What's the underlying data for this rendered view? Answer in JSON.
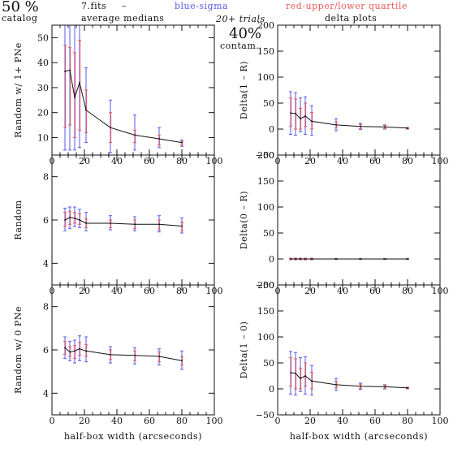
{
  "header": {
    "pct_left": "50 %",
    "catalog": "catalog",
    "fits": "7.fits",
    "dash": "–",
    "avg_medians": "average medians",
    "blue_sigma": "blue-sigma",
    "red_quartile": "red-upper/lower quartile",
    "trials": "20+ trials",
    "pct_right": "40%",
    "contam": "contam.",
    "delta_plots": "delta plots",
    "blue_color": "#5a5aee",
    "red_color": "#ee5a5a"
  },
  "chart_data": [
    {
      "type": "line",
      "ylabel": "Random w/ 1+ PNe",
      "xlabel": "",
      "xlim": [
        0,
        100
      ],
      "ylim": [
        3,
        55
      ],
      "xticks": [
        "0",
        "20",
        "40",
        "60",
        "80",
        "100"
      ],
      "yticks": [
        "10",
        "20",
        "30",
        "40",
        "50"
      ],
      "x": [
        8,
        11,
        14,
        17,
        21,
        36,
        51,
        66,
        80
      ],
      "y": [
        36.5,
        37,
        26,
        32,
        21,
        14,
        11,
        9.5,
        8
      ],
      "sigma": [
        [
          5,
          56
        ],
        [
          5,
          56
        ],
        [
          5,
          56
        ],
        [
          6,
          56
        ],
        [
          8,
          38
        ],
        [
          4,
          25
        ],
        [
          5,
          19
        ],
        [
          6,
          14
        ],
        [
          6.5,
          9
        ]
      ],
      "quartile": [
        [
          14,
          47
        ],
        [
          15,
          46
        ],
        [
          10,
          44
        ],
        [
          13,
          49
        ],
        [
          12,
          29
        ],
        [
          8,
          20
        ],
        [
          8,
          13
        ],
        [
          7,
          11
        ],
        [
          7,
          8.5
        ]
      ]
    },
    {
      "type": "line",
      "ylabel": "Delta(1 – R)",
      "xlabel": "",
      "xlim": [
        0,
        100
      ],
      "ylim": [
        -50,
        200
      ],
      "xticks": [
        "0",
        "20",
        "40",
        "60",
        "80",
        "100"
      ],
      "yticks": [
        "−50",
        "0",
        "50",
        "100",
        "150",
        "200"
      ],
      "x": [
        8,
        11,
        14,
        17,
        21,
        36,
        51,
        66,
        80
      ],
      "y": [
        31,
        30,
        20,
        25,
        15,
        8,
        5,
        4,
        2
      ],
      "sigma": [
        [
          -10,
          72
        ],
        [
          -12,
          70
        ],
        [
          -5,
          60
        ],
        [
          -10,
          62
        ],
        [
          -12,
          45
        ],
        [
          -3,
          20
        ],
        [
          -1,
          11
        ],
        [
          0,
          8
        ],
        [
          0,
          3
        ]
      ],
      "quartile": [
        [
          5,
          60
        ],
        [
          0,
          58
        ],
        [
          0,
          40
        ],
        [
          5,
          50
        ],
        [
          0,
          32
        ],
        [
          2,
          14
        ],
        [
          1,
          9
        ],
        [
          1,
          7
        ],
        [
          1,
          3
        ]
      ]
    },
    {
      "type": "line",
      "ylabel": "Random",
      "xlabel": "",
      "xlim": [
        0,
        100
      ],
      "ylim": [
        3,
        9
      ],
      "xticks": [
        "0",
        "20",
        "40",
        "60",
        "80",
        "100"
      ],
      "yticks": [
        "4",
        "6",
        "8"
      ],
      "x": [
        8,
        11,
        14,
        17,
        21,
        36,
        51,
        66,
        80
      ],
      "y": [
        6.0,
        6.12,
        6.08,
        6.0,
        5.85,
        5.85,
        5.8,
        5.8,
        5.72
      ],
      "sigma": [
        [
          5.5,
          6.55
        ],
        [
          5.6,
          6.6
        ],
        [
          5.7,
          6.6
        ],
        [
          5.65,
          6.5
        ],
        [
          5.5,
          6.35
        ],
        [
          5.55,
          6.2
        ],
        [
          5.5,
          6.15
        ],
        [
          5.45,
          6.2
        ],
        [
          5.4,
          6.1
        ]
      ],
      "quartile": [
        [
          5.7,
          6.35
        ],
        [
          5.8,
          6.4
        ],
        [
          5.85,
          6.35
        ],
        [
          5.8,
          6.3
        ],
        [
          5.65,
          6.05
        ],
        [
          5.65,
          6.0
        ],
        [
          5.6,
          6.0
        ],
        [
          5.55,
          6.0
        ],
        [
          5.5,
          5.9
        ]
      ]
    },
    {
      "type": "line",
      "ylabel": "Delta(0 – R)",
      "xlabel": "",
      "xlim": [
        0,
        100
      ],
      "ylim": [
        -50,
        200
      ],
      "xticks": [
        "0",
        "20",
        "40",
        "60",
        "80",
        "100"
      ],
      "yticks": [
        "−50",
        "0",
        "50",
        "100",
        "150",
        "200"
      ],
      "x": [
        8,
        11,
        14,
        17,
        21,
        36,
        51,
        66,
        80
      ],
      "y": [
        0,
        0,
        0,
        0,
        0,
        0,
        0,
        0,
        0
      ],
      "sigma": [
        [
          -1.5,
          1.5
        ],
        [
          -1.5,
          1.5
        ],
        [
          -1.5,
          1.5
        ],
        [
          -1.5,
          1.5
        ],
        [
          -1.5,
          1.5
        ],
        [
          -1,
          1
        ],
        [
          -1,
          1
        ],
        [
          -1,
          1
        ],
        [
          -1,
          1
        ]
      ],
      "quartile": [
        [
          -1,
          1
        ],
        [
          -1,
          1
        ],
        [
          -1,
          1
        ],
        [
          -1,
          1
        ],
        [
          -1,
          1
        ],
        [
          -0.5,
          0.5
        ],
        [
          -0.5,
          0.5
        ],
        [
          -0.5,
          0.5
        ],
        [
          -0.5,
          0.5
        ]
      ]
    },
    {
      "type": "line",
      "ylabel": "Random w/ 0 PNe",
      "xlabel": "half-box width (arcseconds)",
      "xlim": [
        0,
        100
      ],
      "ylim": [
        3,
        9
      ],
      "xticks": [
        "0",
        "20",
        "40",
        "60",
        "80",
        "100"
      ],
      "yticks": [
        "4",
        "6",
        "8"
      ],
      "x": [
        8,
        11,
        14,
        17,
        21,
        36,
        51,
        66,
        80
      ],
      "y": [
        6.1,
        5.9,
        5.95,
        6.05,
        5.95,
        5.78,
        5.75,
        5.7,
        5.5
      ],
      "sigma": [
        [
          5.6,
          6.6
        ],
        [
          5.5,
          6.4
        ],
        [
          5.4,
          6.45
        ],
        [
          5.5,
          6.65
        ],
        [
          5.45,
          6.6
        ],
        [
          5.4,
          6.15
        ],
        [
          5.35,
          6.1
        ],
        [
          5.3,
          6.05
        ],
        [
          5.1,
          5.95
        ]
      ],
      "quartile": [
        [
          5.8,
          6.4
        ],
        [
          5.7,
          6.15
        ],
        [
          5.6,
          6.2
        ],
        [
          5.75,
          6.35
        ],
        [
          5.7,
          6.25
        ],
        [
          5.55,
          6.0
        ],
        [
          5.5,
          5.95
        ],
        [
          5.45,
          5.9
        ],
        [
          5.3,
          5.7
        ]
      ]
    },
    {
      "type": "line",
      "ylabel": "Delta(1 – 0)",
      "xlabel": "half-box width (arcseconds)",
      "xlim": [
        0,
        100
      ],
      "ylim": [
        -50,
        200
      ],
      "xticks": [
        "0",
        "20",
        "40",
        "60",
        "80",
        "100"
      ],
      "yticks": [
        "−50",
        "0",
        "50",
        "100",
        "150",
        "200"
      ],
      "x": [
        8,
        11,
        14,
        17,
        21,
        36,
        51,
        66,
        80
      ],
      "y": [
        31,
        30,
        20,
        25,
        15,
        8,
        5,
        4,
        2
      ],
      "sigma": [
        [
          -10,
          72
        ],
        [
          -12,
          70
        ],
        [
          -5,
          60
        ],
        [
          -10,
          62
        ],
        [
          -12,
          45
        ],
        [
          -3,
          20
        ],
        [
          -1,
          11
        ],
        [
          0,
          8
        ],
        [
          0,
          3
        ]
      ],
      "quartile": [
        [
          5,
          60
        ],
        [
          0,
          58
        ],
        [
          0,
          40
        ],
        [
          5,
          50
        ],
        [
          0,
          32
        ],
        [
          2,
          14
        ],
        [
          1,
          9
        ],
        [
          1,
          7
        ],
        [
          1,
          3
        ]
      ]
    }
  ]
}
